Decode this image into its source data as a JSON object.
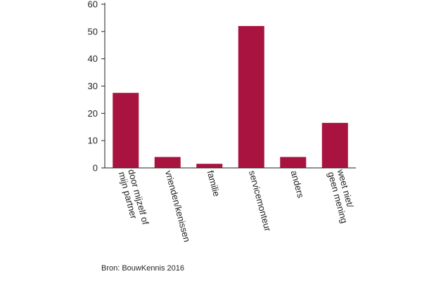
{
  "chart_data": {
    "type": "bar",
    "categories": [
      [
        "door mijzelf of",
        "mijn partner"
      ],
      [
        "vrienden/kenissen"
      ],
      [
        "familie"
      ],
      [
        "servicemonteur"
      ],
      [
        "anders"
      ],
      [
        "weet niet/",
        "geen mening"
      ]
    ],
    "values": [
      27.5,
      4,
      1.5,
      52,
      4,
      16.5
    ],
    "ylim": [
      0,
      60
    ],
    "yticks": [
      0,
      10,
      20,
      30,
      40,
      50,
      60
    ],
    "bar_color": "#a8133f",
    "grid": false
  },
  "source": "Bron: BouwKennis 2016"
}
